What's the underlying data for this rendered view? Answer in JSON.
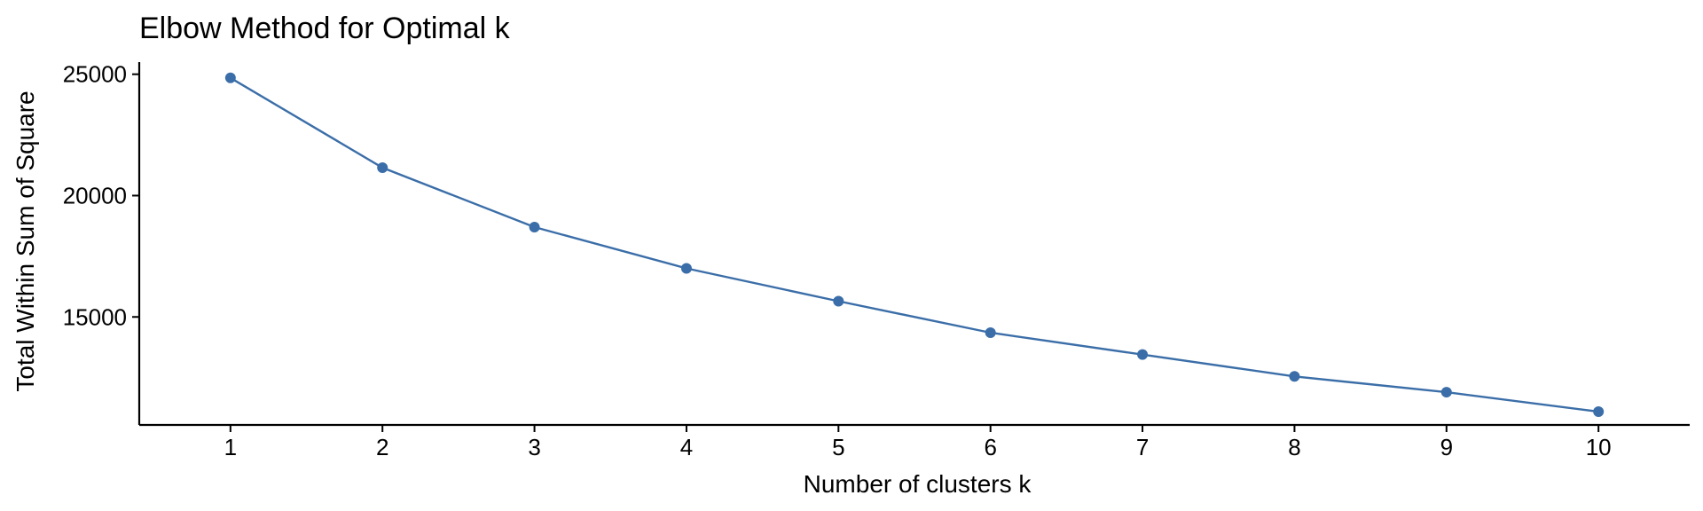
{
  "chart_data": {
    "type": "line",
    "title": "Elbow Method for Optimal k",
    "xlabel": "Number of clusters k",
    "ylabel": "Total Within Sum of Square",
    "x": [
      1,
      2,
      3,
      4,
      5,
      6,
      7,
      8,
      9,
      10
    ],
    "y": [
      24850,
      21150,
      18700,
      17000,
      15650,
      14350,
      13450,
      12550,
      11900,
      11100
    ],
    "xticks": [
      "1",
      "2",
      "3",
      "4",
      "5",
      "6",
      "7",
      "8",
      "9",
      "10"
    ],
    "yticks": [
      "15000",
      "20000",
      "25000"
    ],
    "ytick_values": [
      15000,
      20000,
      25000
    ],
    "xlim": [
      0.4,
      10.6
    ],
    "ylim": [
      10550,
      25500
    ],
    "grid": false,
    "legend": "none",
    "color": "#3b6ea8"
  }
}
